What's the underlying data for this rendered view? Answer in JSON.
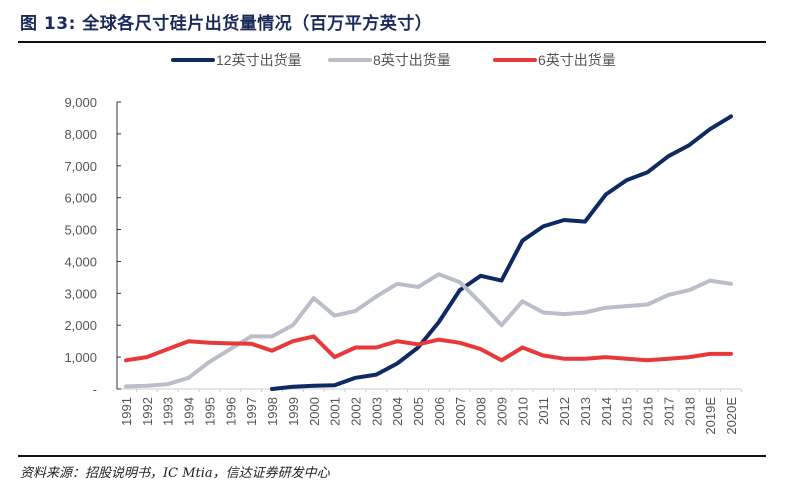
{
  "title": "图 13: 全球各尺寸硅片出货量情况（百万平方英寸）",
  "source": "资料来源：招股说明书，IC Mtia，信达证券研发中心",
  "chart_data": {
    "type": "line",
    "title": "图 13: 全球各尺寸硅片出货量情况（百万平方英寸）",
    "xlabel": "",
    "ylabel": "",
    "ylim": [
      0,
      9000
    ],
    "yticks": [
      0,
      1000,
      2000,
      3000,
      4000,
      5000,
      6000,
      7000,
      8000,
      9000
    ],
    "ytick_labels": [
      "-",
      "1,000",
      "2,000",
      "3,000",
      "4,000",
      "5,000",
      "6,000",
      "7,000",
      "8,000",
      "9,000"
    ],
    "legend_position": "top-center",
    "grid": false,
    "categories": [
      "1991",
      "1992",
      "1993",
      "1994",
      "1995",
      "1996",
      "1997",
      "1998",
      "1999",
      "2000",
      "2001",
      "2002",
      "2003",
      "2004",
      "2005",
      "2006",
      "2007",
      "2008",
      "2009",
      "2010",
      "2011",
      "2012",
      "2013",
      "2014",
      "2015",
      "2016",
      "2017",
      "2018",
      "2019E",
      "2020E"
    ],
    "series": [
      {
        "name": "12英寸出货量",
        "color": "#0d2a63",
        "values": [
          null,
          null,
          null,
          null,
          null,
          null,
          null,
          0,
          70,
          100,
          120,
          350,
          450,
          800,
          1300,
          2100,
          3100,
          3550,
          3400,
          4650,
          5100,
          5300,
          5250,
          6100,
          6550,
          6800,
          7300,
          7650,
          8150,
          8550
        ]
      },
      {
        "name": "8英寸出货量",
        "color": "#b9bec9",
        "values": [
          80,
          100,
          150,
          350,
          850,
          1250,
          1650,
          1650,
          2000,
          2850,
          2300,
          2450,
          2900,
          3300,
          3200,
          3600,
          3350,
          2700,
          2000,
          2750,
          2400,
          2350,
          2400,
          2550,
          2600,
          2650,
          2950,
          3100,
          3400,
          3300
        ]
      },
      {
        "name": "6英寸出货量",
        "color": "#e8393a",
        "values": [
          900,
          1000,
          1250,
          1500,
          1450,
          1430,
          1420,
          1200,
          1500,
          1650,
          1000,
          1300,
          1300,
          1500,
          1400,
          1550,
          1450,
          1250,
          900,
          1300,
          1050,
          950,
          950,
          1000,
          950,
          900,
          950,
          1000,
          1100,
          1100
        ]
      }
    ]
  }
}
